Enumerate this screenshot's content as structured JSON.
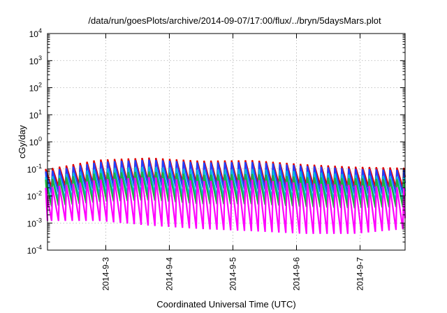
{
  "chart_data": {
    "type": "line",
    "title": "/data/run/goesPlots/archive/2014-09-07/17:00/flux/../bryn/5daysMars.plot",
    "xlabel": "Coordinated Universal Time (UTC)",
    "ylabel": "cGy/day",
    "yscale": "log",
    "ylim": [
      0.0001,
      10000
    ],
    "xlim": [
      "2014-09-02 02:00",
      "2014-09-07 17:00"
    ],
    "xticks": [
      "2014-9-3",
      "2014-9-4",
      "2014-9-5",
      "2014-9-6",
      "2014-9-7"
    ],
    "yticks": [
      {
        "base": "10",
        "exp": "-4"
      },
      {
        "base": "10",
        "exp": "-3"
      },
      {
        "base": "10",
        "exp": "-2"
      },
      {
        "base": "10",
        "exp": "-1"
      },
      {
        "base": "10",
        "exp": "0"
      },
      {
        "base": "10",
        "exp": "1"
      },
      {
        "base": "10",
        "exp": "2"
      },
      {
        "base": "10",
        "exp": "3"
      },
      {
        "base": "10",
        "exp": "4"
      }
    ],
    "grid": true,
    "legend": "none",
    "series": [
      {
        "color": "#e00000",
        "peak": [
          0.1,
          0.22,
          0.26,
          0.2,
          0.21,
          0.15,
          0.12,
          0.11
        ],
        "trough": [
          0.02,
          0.03,
          0.035,
          0.03,
          0.028,
          0.025,
          0.022,
          0.02
        ]
      },
      {
        "color": "#2040ff",
        "peak": [
          0.08,
          0.18,
          0.22,
          0.17,
          0.18,
          0.13,
          0.1,
          0.09
        ],
        "trough": [
          0.012,
          0.02,
          0.025,
          0.02,
          0.018,
          0.015,
          0.012,
          0.012
        ]
      },
      {
        "color": "#00b8e0",
        "peak": [
          0.05,
          0.1,
          0.12,
          0.09,
          0.1,
          0.08,
          0.06,
          0.05
        ],
        "trough": [
          0.006,
          0.01,
          0.012,
          0.009,
          0.008,
          0.007,
          0.006,
          0.006
        ]
      },
      {
        "color": "#20b040",
        "peak": [
          0.04,
          0.07,
          0.08,
          0.06,
          0.065,
          0.05,
          0.045,
          0.04
        ],
        "trough": [
          0.004,
          0.006,
          0.007,
          0.005,
          0.005,
          0.004,
          0.0035,
          0.004
        ]
      },
      {
        "color": "#ff00ff",
        "peak": [
          0.02,
          0.04,
          0.05,
          0.035,
          0.04,
          0.03,
          0.025,
          0.02
        ],
        "trough": [
          0.0012,
          0.0012,
          0.0008,
          0.0006,
          0.0005,
          0.0004,
          0.0004,
          0.0006
        ]
      }
    ]
  }
}
